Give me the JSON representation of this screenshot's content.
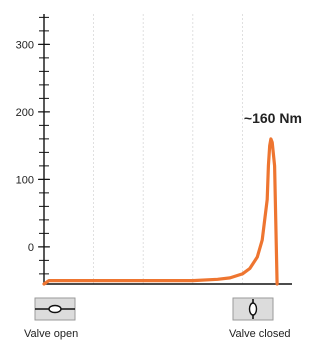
{
  "chart_data": {
    "type": "line",
    "title": "",
    "xlabel": "",
    "ylabel": "",
    "ylim": [
      -55,
      345
    ],
    "y_ticks": [
      0,
      100,
      200,
      300
    ],
    "y_minor_step": 20,
    "grid": "dashed vertical",
    "series": [
      {
        "color": "#ee7530",
        "x": [
          0.0,
          0.02,
          0.1,
          0.3,
          0.5,
          0.6,
          0.7,
          0.75,
          0.8,
          0.83,
          0.86,
          0.88,
          0.9,
          0.905,
          0.91,
          0.915,
          0.92,
          0.93,
          0.94
        ],
        "values": [
          -55,
          -50,
          -50,
          -50,
          -50,
          -50,
          -48,
          -46,
          -40,
          -32,
          -15,
          10,
          70,
          120,
          150,
          160,
          155,
          120,
          -55
        ]
      }
    ],
    "annotations": [
      {
        "text": "~160 Nm",
        "x": 0.915,
        "y": 160
      }
    ]
  },
  "valves": {
    "open_label": "Valve open",
    "closed_label": "Valve closed"
  }
}
